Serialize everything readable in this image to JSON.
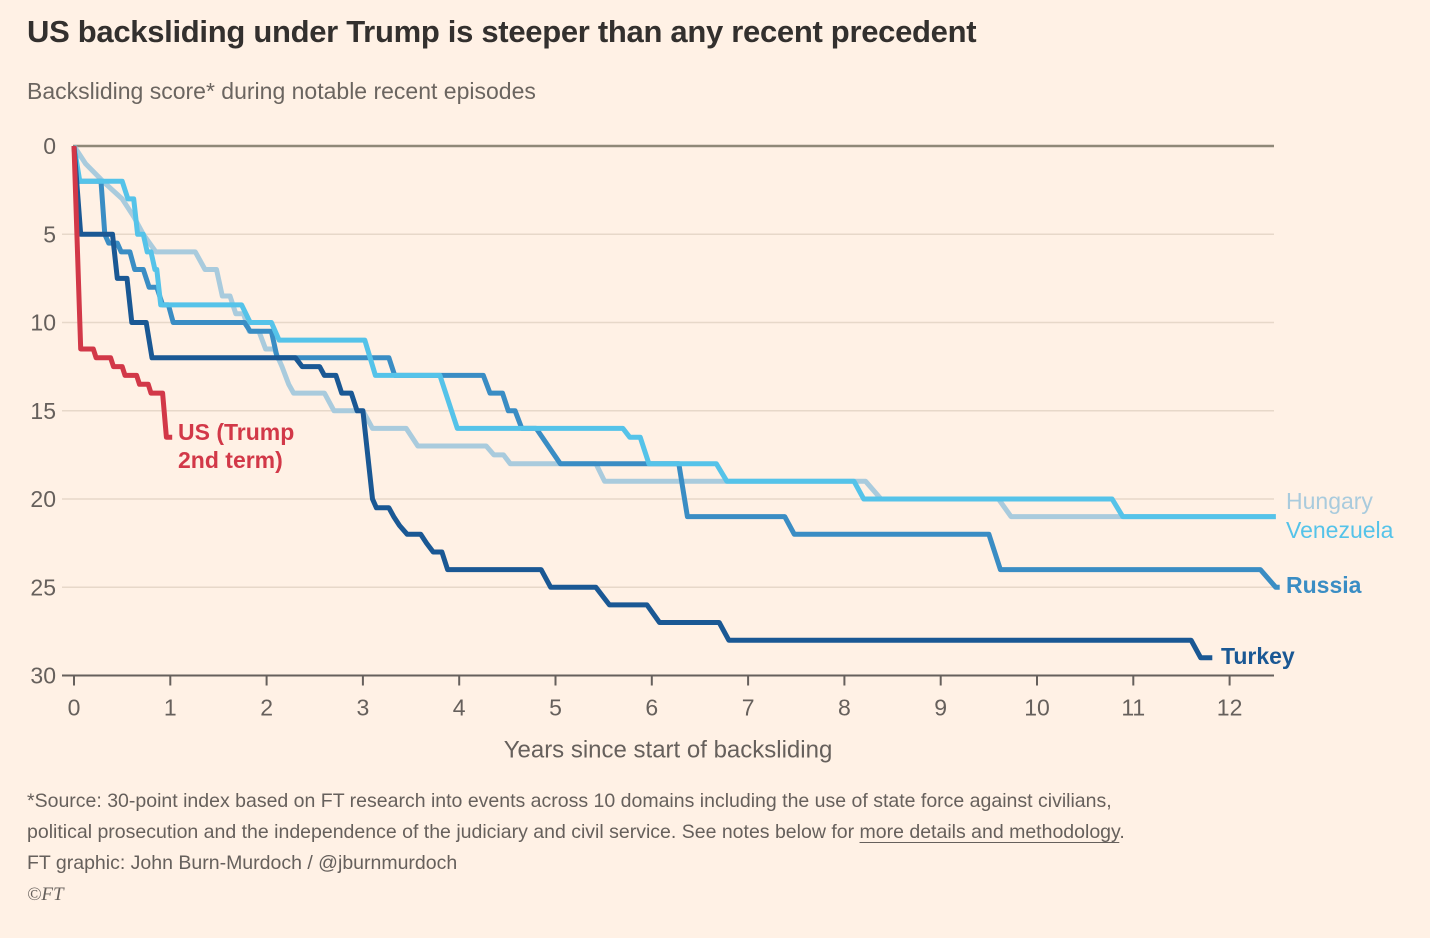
{
  "header": {
    "title": "US backsliding under Trump is steeper than any recent precedent",
    "subtitle": "Backsliding score* during notable recent episodes"
  },
  "chart_data": {
    "type": "line",
    "title": "Backsliding score* during notable recent episodes",
    "xlabel": "Years since start of backsliding",
    "ylabel": "",
    "x_ticks": [
      0,
      1,
      2,
      3,
      4,
      5,
      6,
      7,
      8,
      9,
      10,
      11,
      12
    ],
    "y_ticks": [
      0,
      5,
      10,
      15,
      20,
      25,
      30
    ],
    "xlim": [
      0,
      12.55
    ],
    "ylim": [
      0,
      30
    ],
    "y_axis_inverted": true,
    "grid": "horizontal",
    "legend_position": "line-end-labels",
    "series": [
      {
        "name": "hungary",
        "label": "Hungary",
        "color": "#A9CBDD",
        "points": [
          [
            0,
            0
          ],
          [
            0.12,
            1
          ],
          [
            0.3,
            2
          ],
          [
            0.5,
            3
          ],
          [
            0.62,
            4
          ],
          [
            0.72,
            5
          ],
          [
            0.85,
            6
          ],
          [
            1.26,
            6
          ],
          [
            1.36,
            7
          ],
          [
            1.48,
            7
          ],
          [
            1.54,
            8.5
          ],
          [
            1.62,
            8.5
          ],
          [
            1.68,
            9.5
          ],
          [
            1.76,
            9.5
          ],
          [
            1.82,
            10.5
          ],
          [
            1.92,
            10.5
          ],
          [
            1.99,
            11.5
          ],
          [
            2.08,
            11.5
          ],
          [
            2.16,
            12.5
          ],
          [
            2.23,
            13.5
          ],
          [
            2.28,
            14
          ],
          [
            2.6,
            14
          ],
          [
            2.7,
            15
          ],
          [
            3.0,
            15
          ],
          [
            3.1,
            16
          ],
          [
            3.45,
            16
          ],
          [
            3.57,
            17
          ],
          [
            4.28,
            17
          ],
          [
            4.36,
            17.5
          ],
          [
            4.46,
            17.5
          ],
          [
            4.53,
            18
          ],
          [
            5.42,
            18
          ],
          [
            5.51,
            19
          ],
          [
            8.22,
            19
          ],
          [
            8.38,
            20
          ],
          [
            9.6,
            20
          ],
          [
            9.73,
            21
          ],
          [
            12.48,
            21
          ]
        ]
      },
      {
        "name": "russia",
        "label": "Russia",
        "color": "#3A8DC4",
        "points": [
          [
            0,
            0
          ],
          [
            0.05,
            2
          ],
          [
            0.28,
            2
          ],
          [
            0.32,
            5
          ],
          [
            0.36,
            5.5
          ],
          [
            0.45,
            5.5
          ],
          [
            0.49,
            6
          ],
          [
            0.58,
            6
          ],
          [
            0.63,
            7
          ],
          [
            0.72,
            7
          ],
          [
            0.78,
            8
          ],
          [
            0.86,
            8
          ],
          [
            0.92,
            9
          ],
          [
            0.98,
            9
          ],
          [
            1.03,
            10
          ],
          [
            1.77,
            10
          ],
          [
            1.83,
            10.5
          ],
          [
            2.05,
            10.5
          ],
          [
            2.11,
            12
          ],
          [
            3.27,
            12
          ],
          [
            3.33,
            13
          ],
          [
            4.25,
            13
          ],
          [
            4.32,
            14
          ],
          [
            4.45,
            14
          ],
          [
            4.51,
            15
          ],
          [
            4.58,
            15
          ],
          [
            4.65,
            16
          ],
          [
            4.8,
            16
          ],
          [
            5.05,
            18
          ],
          [
            6.28,
            18
          ],
          [
            6.37,
            21
          ],
          [
            7.38,
            21
          ],
          [
            7.48,
            22
          ],
          [
            9.5,
            22
          ],
          [
            9.62,
            24
          ],
          [
            12.32,
            24
          ],
          [
            12.48,
            25
          ],
          [
            12.52,
            25
          ]
        ]
      },
      {
        "name": "venezuela",
        "label": "Venezuela",
        "color": "#55C3E9",
        "points": [
          [
            0,
            0
          ],
          [
            0.06,
            2
          ],
          [
            0.5,
            2
          ],
          [
            0.56,
            3
          ],
          [
            0.62,
            3
          ],
          [
            0.66,
            5
          ],
          [
            0.72,
            5
          ],
          [
            0.76,
            6
          ],
          [
            0.8,
            6
          ],
          [
            0.84,
            7
          ],
          [
            0.86,
            7
          ],
          [
            0.9,
            9
          ],
          [
            1.74,
            9
          ],
          [
            1.83,
            10
          ],
          [
            2.05,
            10
          ],
          [
            2.13,
            11
          ],
          [
            3.02,
            11
          ],
          [
            3.13,
            13
          ],
          [
            3.8,
            13
          ],
          [
            3.98,
            16
          ],
          [
            5.7,
            16
          ],
          [
            5.77,
            16.5
          ],
          [
            5.88,
            16.5
          ],
          [
            5.97,
            18
          ],
          [
            6.67,
            18
          ],
          [
            6.78,
            19
          ],
          [
            8.1,
            19
          ],
          [
            8.2,
            20
          ],
          [
            10.78,
            20
          ],
          [
            10.89,
            21
          ],
          [
            12.48,
            21
          ]
        ]
      },
      {
        "name": "turkey",
        "label": "Turkey",
        "color": "#1A5894",
        "points": [
          [
            0,
            0
          ],
          [
            0.07,
            5
          ],
          [
            0.4,
            5
          ],
          [
            0.45,
            7.5
          ],
          [
            0.55,
            7.5
          ],
          [
            0.6,
            10
          ],
          [
            0.75,
            10
          ],
          [
            0.81,
            12
          ],
          [
            2.3,
            12
          ],
          [
            2.37,
            12.5
          ],
          [
            2.55,
            12.5
          ],
          [
            2.6,
            13
          ],
          [
            2.72,
            13
          ],
          [
            2.78,
            14
          ],
          [
            2.88,
            14
          ],
          [
            2.94,
            15
          ],
          [
            3.0,
            15
          ],
          [
            3.1,
            20
          ],
          [
            3.14,
            20.5
          ],
          [
            3.27,
            20.5
          ],
          [
            3.32,
            21
          ],
          [
            3.38,
            21.5
          ],
          [
            3.46,
            22
          ],
          [
            3.6,
            22
          ],
          [
            3.66,
            22.5
          ],
          [
            3.73,
            23
          ],
          [
            3.82,
            23
          ],
          [
            3.88,
            24
          ],
          [
            4.85,
            24
          ],
          [
            4.95,
            25
          ],
          [
            5.42,
            25
          ],
          [
            5.56,
            26
          ],
          [
            5.95,
            26
          ],
          [
            6.08,
            27
          ],
          [
            6.7,
            27
          ],
          [
            6.8,
            28
          ],
          [
            11.6,
            28
          ],
          [
            11.7,
            29
          ],
          [
            11.82,
            29
          ]
        ]
      },
      {
        "name": "us",
        "label": "US (Trump 2nd term)",
        "label_lines": [
          "US (Trump",
          "2nd term)"
        ],
        "color": "#D23848",
        "points": [
          [
            0,
            0
          ],
          [
            0.07,
            11.5
          ],
          [
            0.2,
            11.5
          ],
          [
            0.23,
            12
          ],
          [
            0.38,
            12
          ],
          [
            0.41,
            12.5
          ],
          [
            0.5,
            12.5
          ],
          [
            0.53,
            13
          ],
          [
            0.65,
            13
          ],
          [
            0.68,
            13.5
          ],
          [
            0.77,
            13.5
          ],
          [
            0.8,
            14
          ],
          [
            0.92,
            14
          ],
          [
            0.96,
            16.5
          ],
          [
            1.02,
            16.5
          ]
        ]
      }
    ]
  },
  "footer": {
    "source_line1": "*Source: 30-point index based on FT research into events across 10 domains including the use of state force against civilians,",
    "source_line2_prefix": "political prosecution and the independence of the judiciary and civil service. See notes below for ",
    "source_link": "more details and methodology",
    "source_line2_suffix": ".",
    "credit": "FT graphic: John Burn-Murdoch / @jburnmurdoch",
    "copyright": "©FT"
  },
  "colors": {
    "background": "#FFF1E5",
    "title_text": "#33302E",
    "secondary_text": "#66605C",
    "gridline": "#E7D8C9",
    "zero_line": "#8F8878",
    "axis_line": "#66605C"
  }
}
